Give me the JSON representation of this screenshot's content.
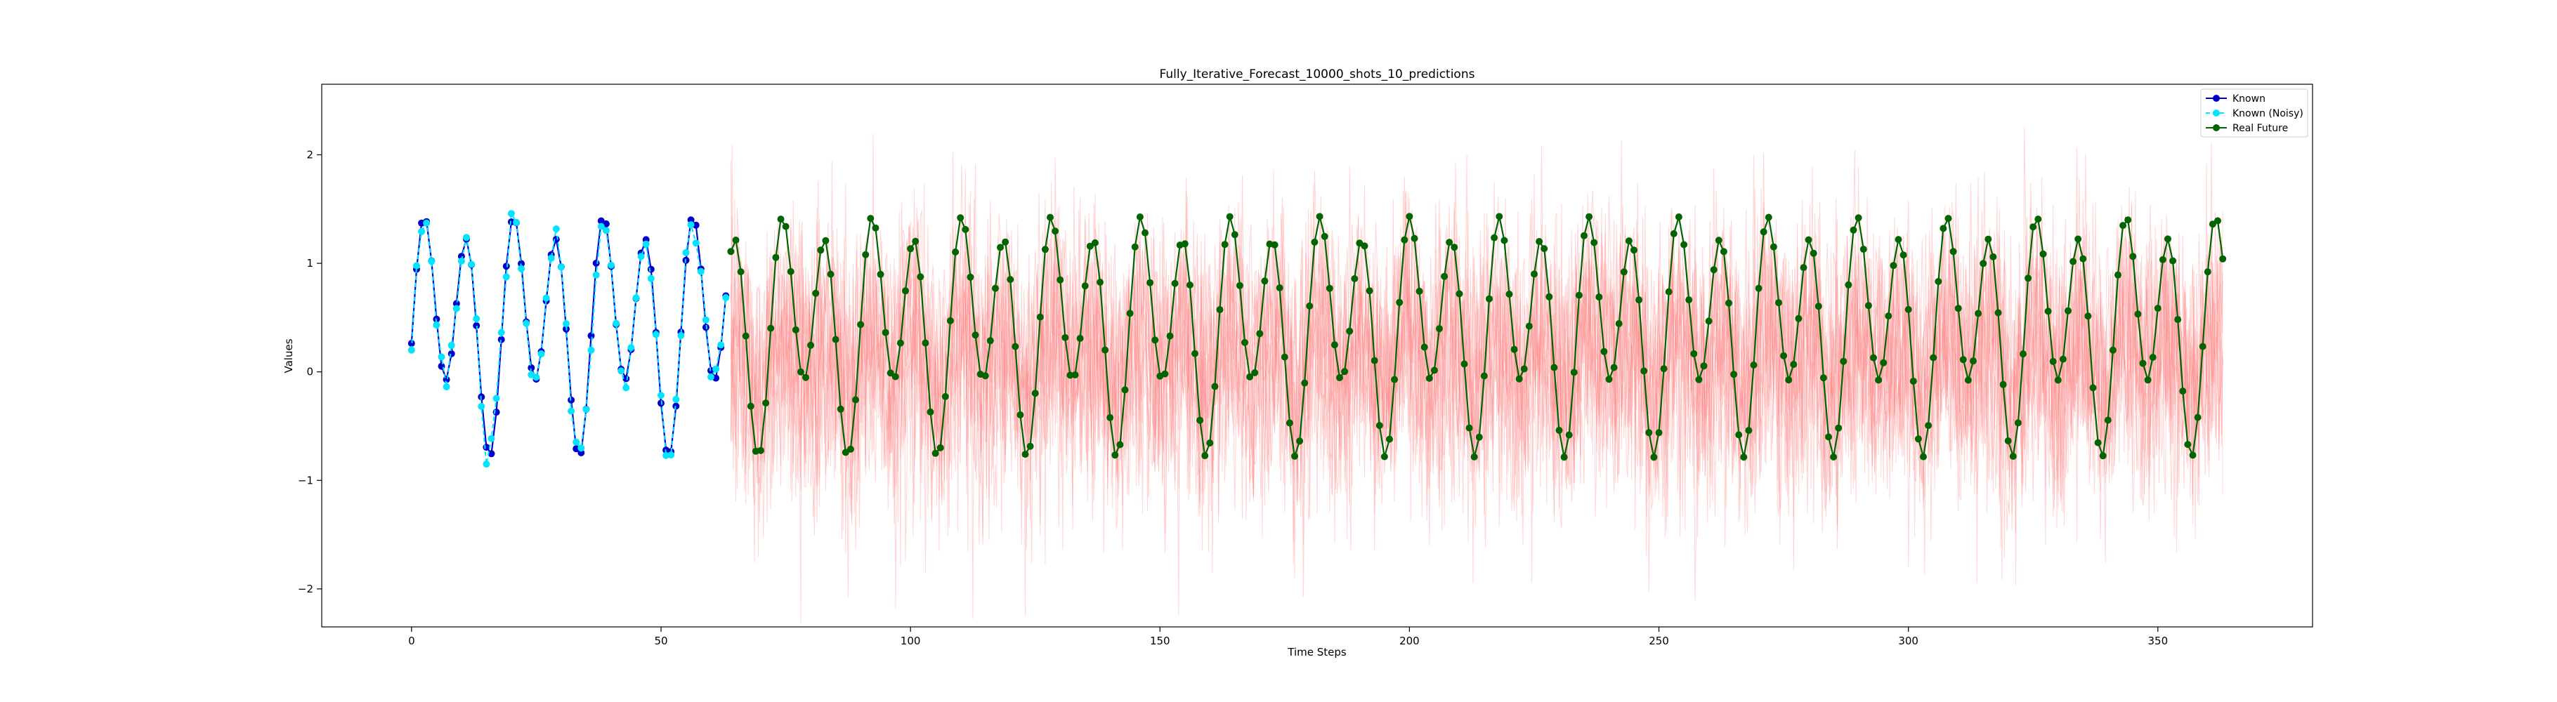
{
  "chart_data": {
    "type": "line",
    "title": "Fully_Iterative_Forecast_10000_shots_10_predictions",
    "xlabel": "Time Steps",
    "ylabel": "Values",
    "xlim": [
      -18,
      381
    ],
    "ylim": [
      -2.35,
      2.65
    ],
    "xticks": [
      0,
      50,
      100,
      150,
      200,
      250,
      300,
      350
    ],
    "yticks": [
      -2,
      -1,
      0,
      1,
      2
    ],
    "grid": false,
    "legend_position": "top-right",
    "signal_model": {
      "formula": "0.87*sin(0.7*t) + 0.37*sin(0.35*t - 0.5) + 0.44",
      "known_range": [
        0,
        63
      ],
      "future_range": [
        64,
        363
      ]
    },
    "series": [
      {
        "name": "Known",
        "color": "#0000cd",
        "style": "line-marker",
        "x_start": 0,
        "x_end": 63
      },
      {
        "name": "Known (Noisy)",
        "color": "#00e5ff",
        "style": "dashed-marker",
        "x_start": 0,
        "x_end": 63,
        "noise_sd": 0.06
      },
      {
        "name": "Real Future",
        "color": "#006400",
        "style": "line-marker",
        "x_start": 64,
        "x_end": 363
      },
      {
        "name": "",
        "color": "#ff8080",
        "style": "faint-line",
        "x_start": 64,
        "x_end": 363,
        "predictions": 10,
        "noise_sd": 0.6
      }
    ]
  }
}
